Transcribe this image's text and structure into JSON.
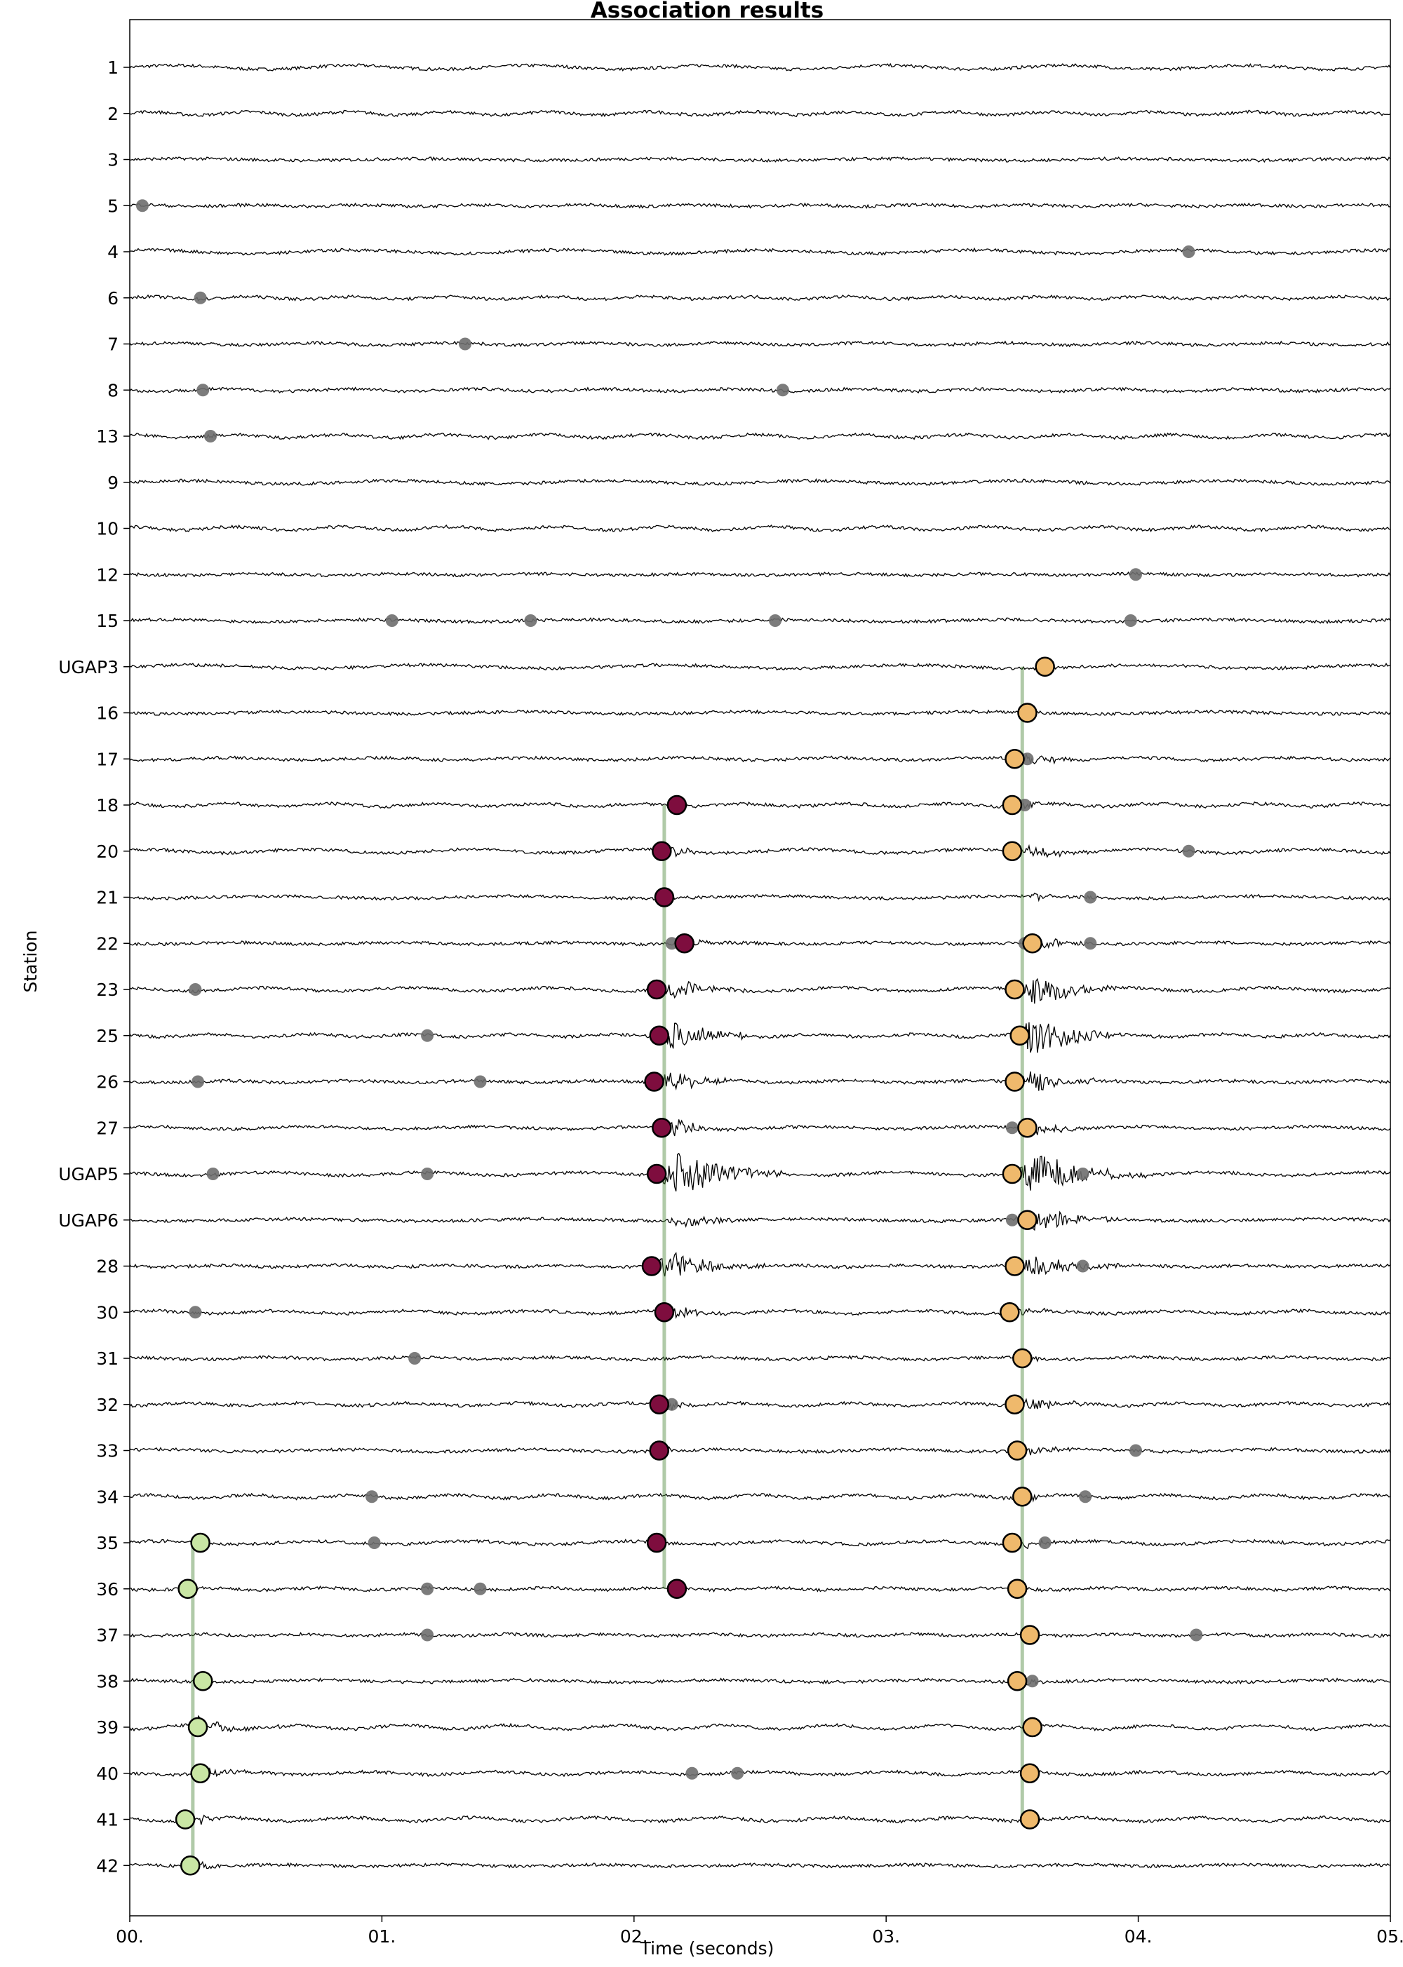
{
  "chart_data": {
    "type": "line",
    "title": "Association results",
    "xlabel": "Time (seconds)",
    "ylabel": "Station",
    "xlim": [
      0,
      5
    ],
    "x_ticks": [
      {
        "value": 0,
        "label": "00."
      },
      {
        "value": 1,
        "label": "01."
      },
      {
        "value": 2,
        "label": "02."
      },
      {
        "value": 3,
        "label": "03."
      },
      {
        "value": 4,
        "label": "04."
      },
      {
        "value": 5,
        "label": "05."
      }
    ],
    "stations": [
      "1",
      "2",
      "3",
      "5",
      "4",
      "6",
      "7",
      "8",
      "13",
      "9",
      "10",
      "12",
      "15",
      "UGAP3",
      "16",
      "17",
      "18",
      "20",
      "21",
      "22",
      "23",
      "25",
      "26",
      "27",
      "UGAP5",
      "UGAP6",
      "28",
      "30",
      "31",
      "32",
      "33",
      "34",
      "35",
      "36",
      "37",
      "38",
      "39",
      "40",
      "41",
      "42"
    ],
    "unassociated_picks": [
      {
        "station": "5",
        "time": 0.05
      },
      {
        "station": "4",
        "time": 4.2
      },
      {
        "station": "6",
        "time": 0.28
      },
      {
        "station": "7",
        "time": 1.33
      },
      {
        "station": "8",
        "time": 0.29
      },
      {
        "station": "8",
        "time": 2.59
      },
      {
        "station": "13",
        "time": 0.32
      },
      {
        "station": "12",
        "time": 3.99
      },
      {
        "station": "15",
        "time": 1.04
      },
      {
        "station": "15",
        "time": 1.59
      },
      {
        "station": "15",
        "time": 2.56
      },
      {
        "station": "15",
        "time": 3.97
      },
      {
        "station": "17",
        "time": 3.56
      },
      {
        "station": "18",
        "time": 3.55
      },
      {
        "station": "20",
        "time": 4.2
      },
      {
        "station": "21",
        "time": 3.81
      },
      {
        "station": "22",
        "time": 2.15
      },
      {
        "station": "22",
        "time": 3.55
      },
      {
        "station": "22",
        "time": 3.81
      },
      {
        "station": "23",
        "time": 0.26
      },
      {
        "station": "25",
        "time": 1.18
      },
      {
        "station": "26",
        "time": 0.27
      },
      {
        "station": "26",
        "time": 1.39
      },
      {
        "station": "27",
        "time": 3.5
      },
      {
        "station": "UGAP5",
        "time": 0.33
      },
      {
        "station": "UGAP5",
        "time": 1.18
      },
      {
        "station": "UGAP5",
        "time": 3.78
      },
      {
        "station": "UGAP6",
        "time": 3.5
      },
      {
        "station": "28",
        "time": 3.78
      },
      {
        "station": "30",
        "time": 0.26
      },
      {
        "station": "31",
        "time": 1.13
      },
      {
        "station": "32",
        "time": 2.15
      },
      {
        "station": "33",
        "time": 3.99
      },
      {
        "station": "34",
        "time": 0.96
      },
      {
        "station": "34",
        "time": 3.79
      },
      {
        "station": "35",
        "time": 0.97
      },
      {
        "station": "35",
        "time": 3.63
      },
      {
        "station": "36",
        "time": 1.18
      },
      {
        "station": "36",
        "time": 1.39
      },
      {
        "station": "37",
        "time": 1.18
      },
      {
        "station": "37",
        "time": 4.23
      },
      {
        "station": "38",
        "time": 3.58
      },
      {
        "station": "40",
        "time": 2.23
      },
      {
        "station": "40",
        "time": 2.41
      }
    ],
    "events": [
      {
        "color": "#c9e6a4",
        "origin_time": 0.25,
        "first_station": "35",
        "last_station": "42",
        "picks": [
          {
            "station": "35",
            "time": 0.28
          },
          {
            "station": "36",
            "time": 0.23
          },
          {
            "station": "38",
            "time": 0.29
          },
          {
            "station": "39",
            "time": 0.27
          },
          {
            "station": "40",
            "time": 0.28
          },
          {
            "station": "41",
            "time": 0.22
          },
          {
            "station": "42",
            "time": 0.24
          }
        ]
      },
      {
        "color": "#7e0d3e",
        "origin_time": 2.12,
        "first_station": "18",
        "last_station": "36",
        "picks": [
          {
            "station": "18",
            "time": 2.17
          },
          {
            "station": "20",
            "time": 2.11
          },
          {
            "station": "21",
            "time": 2.12
          },
          {
            "station": "22",
            "time": 2.2
          },
          {
            "station": "23",
            "time": 2.09
          },
          {
            "station": "25",
            "time": 2.1
          },
          {
            "station": "26",
            "time": 2.08
          },
          {
            "station": "27",
            "time": 2.11
          },
          {
            "station": "UGAP5",
            "time": 2.09
          },
          {
            "station": "28",
            "time": 2.07
          },
          {
            "station": "30",
            "time": 2.12
          },
          {
            "station": "32",
            "time": 2.1
          },
          {
            "station": "33",
            "time": 2.1
          },
          {
            "station": "35",
            "time": 2.09
          },
          {
            "station": "36",
            "time": 2.17
          }
        ]
      },
      {
        "color": "#efb96c",
        "origin_time": 3.54,
        "first_station": "UGAP3",
        "last_station": "41",
        "picks": [
          {
            "station": "UGAP3",
            "time": 3.63
          },
          {
            "station": "16",
            "time": 3.56
          },
          {
            "station": "17",
            "time": 3.51
          },
          {
            "station": "18",
            "time": 3.5
          },
          {
            "station": "20",
            "time": 3.5
          },
          {
            "station": "22",
            "time": 3.58
          },
          {
            "station": "23",
            "time": 3.51
          },
          {
            "station": "25",
            "time": 3.53
          },
          {
            "station": "26",
            "time": 3.51
          },
          {
            "station": "27",
            "time": 3.56
          },
          {
            "station": "UGAP5",
            "time": 3.5
          },
          {
            "station": "UGAP6",
            "time": 3.56
          },
          {
            "station": "28",
            "time": 3.51
          },
          {
            "station": "30",
            "time": 3.49
          },
          {
            "station": "31",
            "time": 3.54
          },
          {
            "station": "32",
            "time": 3.51
          },
          {
            "station": "33",
            "time": 3.52
          },
          {
            "station": "34",
            "time": 3.54
          },
          {
            "station": "35",
            "time": 3.5
          },
          {
            "station": "36",
            "time": 3.52
          },
          {
            "station": "37",
            "time": 3.57
          },
          {
            "station": "38",
            "time": 3.52
          },
          {
            "station": "39",
            "time": 3.58
          },
          {
            "station": "40",
            "time": 3.57
          },
          {
            "station": "41",
            "time": 3.57
          }
        ]
      }
    ],
    "arrival_bursts": [
      {
        "station": "35",
        "start": 0.28,
        "amplitude": 0.05,
        "duration": 0.15
      },
      {
        "station": "36",
        "start": 0.23,
        "amplitude": 0.06,
        "duration": 0.15
      },
      {
        "station": "38",
        "start": 0.29,
        "amplitude": 0.06,
        "duration": 0.15
      },
      {
        "station": "39",
        "start": 0.22,
        "amplitude": 0.5,
        "duration": 0.35
      },
      {
        "station": "39",
        "start": 0.58,
        "amplitude": 0.2,
        "duration": 0.1
      },
      {
        "station": "40",
        "start": 0.28,
        "amplitude": 0.2,
        "duration": 0.3
      },
      {
        "station": "41",
        "start": 0.25,
        "amplitude": 0.25,
        "duration": 0.2
      },
      {
        "station": "42",
        "start": 0.25,
        "amplitude": 0.15,
        "duration": 0.25
      },
      {
        "station": "18",
        "start": 2.17,
        "amplitude": 0.05,
        "duration": 0.1
      },
      {
        "station": "20",
        "start": 2.11,
        "amplitude": 0.3,
        "duration": 0.2
      },
      {
        "station": "21",
        "start": 2.12,
        "amplitude": 0.12,
        "duration": 0.15
      },
      {
        "station": "22",
        "start": 2.15,
        "amplitude": 0.25,
        "duration": 0.2
      },
      {
        "station": "23",
        "start": 2.1,
        "amplitude": 0.5,
        "duration": 0.35
      },
      {
        "station": "25",
        "start": 2.1,
        "amplitude": 0.7,
        "duration": 0.4
      },
      {
        "station": "26",
        "start": 2.08,
        "amplitude": 0.6,
        "duration": 0.35
      },
      {
        "station": "27",
        "start": 2.11,
        "amplitude": 0.4,
        "duration": 0.3
      },
      {
        "station": "UGAP5",
        "start": 2.09,
        "amplitude": 1.0,
        "duration": 0.55
      },
      {
        "station": "UGAP6",
        "start": 2.1,
        "amplitude": 0.25,
        "duration": 0.45
      },
      {
        "station": "28",
        "start": 2.07,
        "amplitude": 0.7,
        "duration": 0.45
      },
      {
        "station": "30",
        "start": 2.12,
        "amplitude": 0.35,
        "duration": 0.25
      },
      {
        "station": "32",
        "start": 2.1,
        "amplitude": 0.25,
        "duration": 0.2
      },
      {
        "station": "33",
        "start": 2.1,
        "amplitude": 0.2,
        "duration": 0.15
      },
      {
        "station": "35",
        "start": 2.09,
        "amplitude": 0.05,
        "duration": 0.1
      },
      {
        "station": "16",
        "start": 3.56,
        "amplitude": 0.05,
        "duration": 0.1
      },
      {
        "station": "17",
        "start": 3.51,
        "amplitude": 0.3,
        "duration": 0.3
      },
      {
        "station": "18",
        "start": 3.52,
        "amplitude": 0.2,
        "duration": 0.2
      },
      {
        "station": "20",
        "start": 3.52,
        "amplitude": 0.35,
        "duration": 0.3
      },
      {
        "station": "21",
        "start": 3.55,
        "amplitude": 0.15,
        "duration": 0.3
      },
      {
        "station": "22",
        "start": 3.55,
        "amplitude": 0.3,
        "duration": 0.3
      },
      {
        "station": "23",
        "start": 3.53,
        "amplitude": 0.7,
        "duration": 0.4
      },
      {
        "station": "25",
        "start": 3.52,
        "amplitude": 1.0,
        "duration": 0.4
      },
      {
        "station": "26",
        "start": 3.51,
        "amplitude": 0.6,
        "duration": 0.35
      },
      {
        "station": "27",
        "start": 3.52,
        "amplitude": 0.35,
        "duration": 0.3
      },
      {
        "station": "UGAP5",
        "start": 3.5,
        "amplitude": 1.0,
        "duration": 0.55
      },
      {
        "station": "UGAP6",
        "start": 3.5,
        "amplitude": 0.6,
        "duration": 0.5
      },
      {
        "station": "28",
        "start": 3.51,
        "amplitude": 0.5,
        "duration": 0.45
      },
      {
        "station": "30",
        "start": 3.49,
        "amplitude": 0.2,
        "duration": 0.25
      },
      {
        "station": "31",
        "start": 3.54,
        "amplitude": 0.12,
        "duration": 0.2
      },
      {
        "station": "32",
        "start": 3.51,
        "amplitude": 0.3,
        "duration": 0.35
      },
      {
        "station": "33",
        "start": 3.52,
        "amplitude": 0.25,
        "duration": 0.3
      },
      {
        "station": "34",
        "start": 3.54,
        "amplitude": 0.15,
        "duration": 0.2
      },
      {
        "station": "35",
        "start": 3.5,
        "amplitude": 0.2,
        "duration": 0.25
      },
      {
        "station": "36",
        "start": 3.52,
        "amplitude": 0.1,
        "duration": 0.2
      },
      {
        "station": "37",
        "start": 3.57,
        "amplitude": 0.06,
        "duration": 0.15
      },
      {
        "station": "38",
        "start": 3.52,
        "amplitude": 0.15,
        "duration": 0.2
      },
      {
        "station": "39",
        "start": 3.58,
        "amplitude": 0.06,
        "duration": 0.15
      },
      {
        "station": "40",
        "start": 3.57,
        "amplitude": 0.06,
        "duration": 0.15
      },
      {
        "station": "41",
        "start": 3.57,
        "amplitude": 0.06,
        "duration": 0.15
      }
    ]
  }
}
